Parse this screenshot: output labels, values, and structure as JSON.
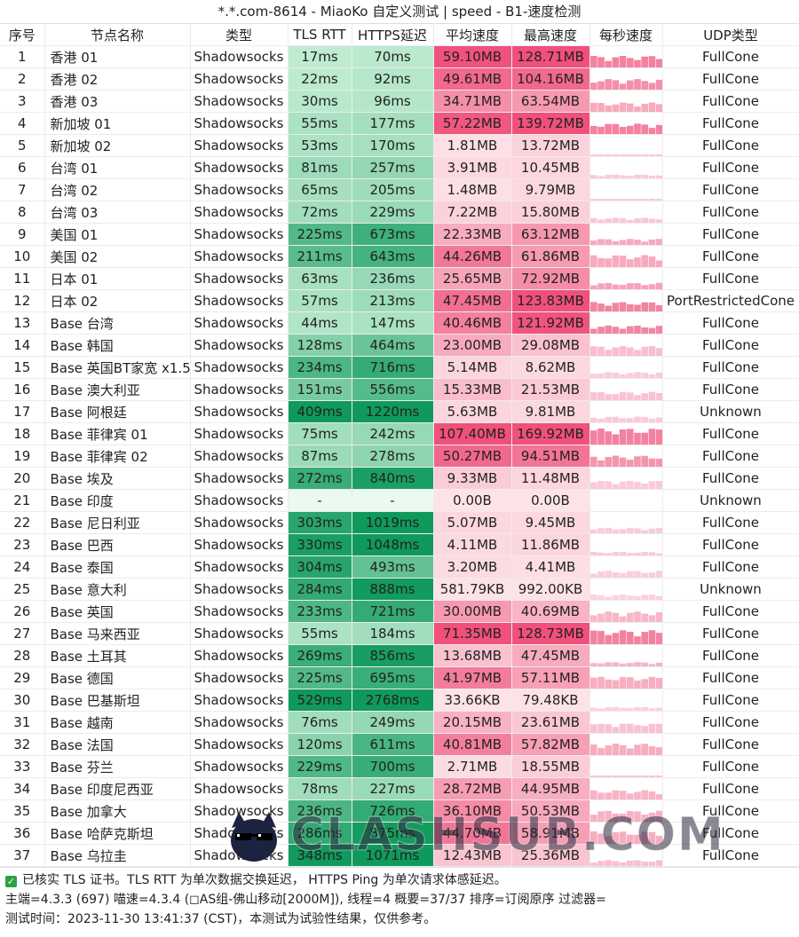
{
  "title": "*.*.com-8614 - MiaoKo 自定义测试 | speed - B1-速度检测",
  "headers": [
    "序号",
    "节点名称",
    "类型",
    "TLS RTT",
    "HTTPS延迟",
    "平均速度",
    "最高速度",
    "每秒速度",
    "UDP类型"
  ],
  "rows": [
    [
      "1",
      "香港 01",
      "Shadowsocks",
      "17ms",
      "70ms",
      "59.10MB",
      "128.71MB",
      "FullCone"
    ],
    [
      "2",
      "香港 02",
      "Shadowsocks",
      "22ms",
      "92ms",
      "49.61MB",
      "104.16MB",
      "FullCone"
    ],
    [
      "3",
      "香港 03",
      "Shadowsocks",
      "30ms",
      "96ms",
      "34.71MB",
      "63.54MB",
      "FullCone"
    ],
    [
      "4",
      "新加坡 01",
      "Shadowsocks",
      "55ms",
      "177ms",
      "57.22MB",
      "139.72MB",
      "FullCone"
    ],
    [
      "5",
      "新加坡 02",
      "Shadowsocks",
      "53ms",
      "170ms",
      "1.81MB",
      "13.72MB",
      "FullCone"
    ],
    [
      "6",
      "台湾 01",
      "Shadowsocks",
      "81ms",
      "257ms",
      "3.91MB",
      "10.45MB",
      "FullCone"
    ],
    [
      "7",
      "台湾 02",
      "Shadowsocks",
      "65ms",
      "205ms",
      "1.48MB",
      "9.79MB",
      "FullCone"
    ],
    [
      "8",
      "台湾 03",
      "Shadowsocks",
      "72ms",
      "229ms",
      "7.22MB",
      "15.80MB",
      "FullCone"
    ],
    [
      "9",
      "美国 01",
      "Shadowsocks",
      "225ms",
      "673ms",
      "22.33MB",
      "63.12MB",
      "FullCone"
    ],
    [
      "10",
      "美国 02",
      "Shadowsocks",
      "211ms",
      "643ms",
      "44.26MB",
      "61.86MB",
      "FullCone"
    ],
    [
      "11",
      "日本 01",
      "Shadowsocks",
      "63ms",
      "236ms",
      "25.65MB",
      "72.92MB",
      "FullCone"
    ],
    [
      "12",
      "日本 02",
      "Shadowsocks",
      "57ms",
      "213ms",
      "47.45MB",
      "123.83MB",
      "PortRestrictedCone"
    ],
    [
      "13",
      "Base 台湾",
      "Shadowsocks",
      "44ms",
      "147ms",
      "40.46MB",
      "121.92MB",
      "FullCone"
    ],
    [
      "14",
      "Base 韩国",
      "Shadowsocks",
      "128ms",
      "464ms",
      "23.00MB",
      "29.08MB",
      "FullCone"
    ],
    [
      "15",
      "Base 英国BT家宽 x1.5",
      "Shadowsocks",
      "234ms",
      "716ms",
      "5.14MB",
      "8.62MB",
      "FullCone"
    ],
    [
      "16",
      "Base 澳大利亚",
      "Shadowsocks",
      "151ms",
      "556ms",
      "15.33MB",
      "21.53MB",
      "FullCone"
    ],
    [
      "17",
      "Base 阿根廷",
      "Shadowsocks",
      "409ms",
      "1220ms",
      "5.63MB",
      "9.81MB",
      "Unknown"
    ],
    [
      "18",
      "Base 菲律宾 01",
      "Shadowsocks",
      "75ms",
      "242ms",
      "107.40MB",
      "169.92MB",
      "FullCone"
    ],
    [
      "19",
      "Base 菲律宾 02",
      "Shadowsocks",
      "87ms",
      "278ms",
      "50.27MB",
      "94.51MB",
      "FullCone"
    ],
    [
      "20",
      "Base 埃及",
      "Shadowsocks",
      "272ms",
      "840ms",
      "9.33MB",
      "11.48MB",
      "FullCone"
    ],
    [
      "21",
      "Base 印度",
      "Shadowsocks",
      "-",
      "-",
      "0.00B",
      "0.00B",
      "Unknown"
    ],
    [
      "22",
      "Base 尼日利亚",
      "Shadowsocks",
      "303ms",
      "1019ms",
      "5.07MB",
      "9.45MB",
      "FullCone"
    ],
    [
      "23",
      "Base 巴西",
      "Shadowsocks",
      "330ms",
      "1048ms",
      "4.11MB",
      "11.86MB",
      "FullCone"
    ],
    [
      "24",
      "Base 泰国",
      "Shadowsocks",
      "304ms",
      "493ms",
      "3.20MB",
      "4.41MB",
      "FullCone"
    ],
    [
      "25",
      "Base 意大利",
      "Shadowsocks",
      "284ms",
      "888ms",
      "581.79KB",
      "992.00KB",
      "Unknown"
    ],
    [
      "26",
      "Base 英国",
      "Shadowsocks",
      "233ms",
      "721ms",
      "30.00MB",
      "40.69MB",
      "FullCone"
    ],
    [
      "27",
      "Base 马来西亚",
      "Shadowsocks",
      "55ms",
      "184ms",
      "71.35MB",
      "128.73MB",
      "FullCone"
    ],
    [
      "28",
      "Base 土耳其",
      "Shadowsocks",
      "269ms",
      "856ms",
      "13.68MB",
      "47.45MB",
      "FullCone"
    ],
    [
      "29",
      "Base 德国",
      "Shadowsocks",
      "225ms",
      "695ms",
      "41.97MB",
      "57.11MB",
      "FullCone"
    ],
    [
      "30",
      "Base 巴基斯坦",
      "Shadowsocks",
      "529ms",
      "2768ms",
      "33.66KB",
      "79.48KB",
      "FullCone"
    ],
    [
      "31",
      "Base 越南",
      "Shadowsocks",
      "76ms",
      "249ms",
      "20.15MB",
      "23.61MB",
      "FullCone"
    ],
    [
      "32",
      "Base 法国",
      "Shadowsocks",
      "120ms",
      "611ms",
      "40.81MB",
      "57.82MB",
      "FullCone"
    ],
    [
      "33",
      "Base 芬兰",
      "Shadowsocks",
      "229ms",
      "700ms",
      "2.71MB",
      "18.55MB",
      "FullCone"
    ],
    [
      "34",
      "Base 印度尼西亚",
      "Shadowsocks",
      "78ms",
      "227ms",
      "28.72MB",
      "44.95MB",
      "FullCone"
    ],
    [
      "35",
      "Base 加拿大",
      "Shadowsocks",
      "236ms",
      "726ms",
      "36.10MB",
      "50.53MB",
      "FullCone"
    ],
    [
      "36",
      "Base 哈萨克斯坦",
      "Shadowsocks",
      "286ms",
      "875ms",
      "44.70MB",
      "58.91MB",
      "FullCone"
    ],
    [
      "37",
      "Base 乌拉圭",
      "Shadowsocks",
      "348ms",
      "1071ms",
      "12.43MB",
      "25.36MB",
      "FullCone"
    ]
  ],
  "footer": {
    "line1": "已核实 TLS 证书。TLS RTT 为单次数据交换延迟， HTTPS Ping 为单次请求体感延迟。",
    "line2": "主端=4.3.3 (697) 喵速=4.3.4 (◻AS组-佛山移动[2000M]), 线程=4 概要=37/37 排序=订阅原序 过滤器=",
    "line3": "测试时间：2023-11-30 13:41:37 (CST)，本测试为试验性结果，仅供参考。"
  },
  "watermark": "CLASHSUB.COM",
  "colors": {
    "green_light": "#c8f0d6",
    "green_dark": "#0f9a5c",
    "pink_light": "#fde3e8",
    "pink_dark": "#f0507a",
    "spark": "#f27a9a"
  }
}
